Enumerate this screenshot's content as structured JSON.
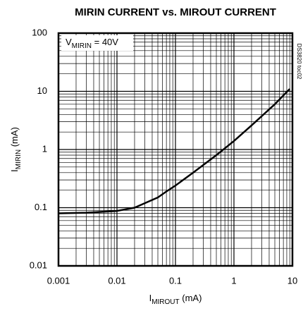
{
  "chart_data": {
    "type": "line",
    "title": "MIRIN CURRENT vs. MIROUT CURRENT",
    "x_label": [
      "I",
      "MIROUT",
      " (mA)"
    ],
    "y_label": [
      "I",
      "MIRIN",
      " (mA)"
    ],
    "annotation": [
      "V",
      "MIRIN",
      " = 40V"
    ],
    "side_note": "DS3820 toc02",
    "x_log": true,
    "y_log": true,
    "grid": true,
    "xlim": [
      0.001,
      10
    ],
    "ylim": [
      0.01,
      100
    ],
    "xticks": [
      0.001,
      0.01,
      0.1,
      1,
      10
    ],
    "yticks": [
      0.01,
      0.1,
      1,
      10,
      100
    ],
    "x": [
      0.001,
      0.003,
      0.01,
      0.02,
      0.05,
      0.07,
      0.1,
      0.2,
      0.5,
      1,
      2,
      5,
      9
    ],
    "series": [
      {
        "color": "#000000",
        "values": [
          0.08,
          0.082,
          0.088,
          0.1,
          0.15,
          0.19,
          0.24,
          0.4,
          0.8,
          1.4,
          2.6,
          6,
          11
        ]
      }
    ]
  }
}
